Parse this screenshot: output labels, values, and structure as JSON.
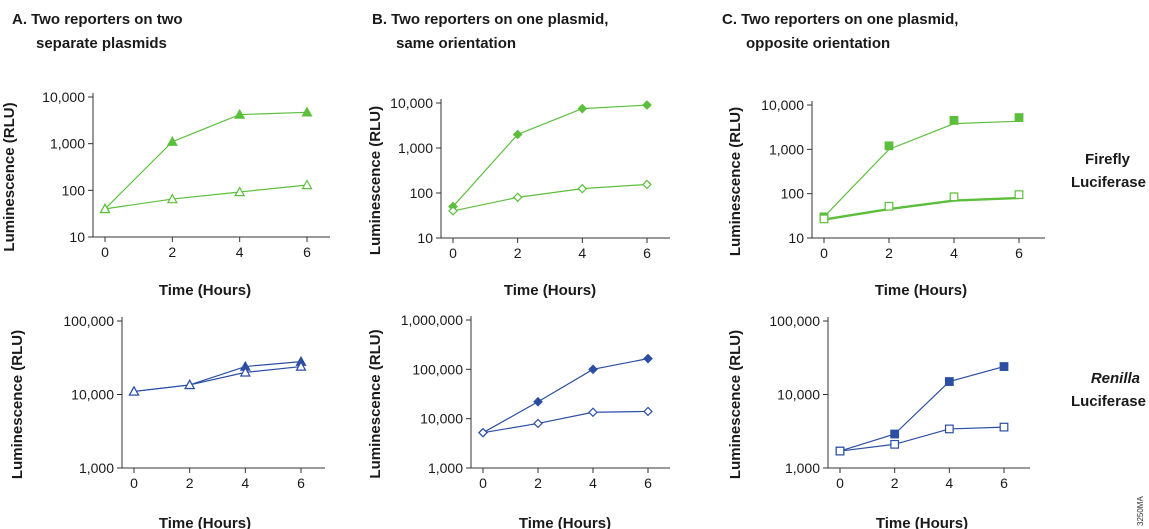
{
  "panels": {
    "a": {
      "title_line1": "A. Two reporters on two",
      "title_line2": "separate plasmids"
    },
    "b": {
      "title_line1": "B. Two reporters on one plasmid,",
      "title_line2": "same orientation"
    },
    "c": {
      "title_line1": "C. Two reporters on one plasmid,",
      "title_line2": "opposite orientation"
    }
  },
  "row_labels": {
    "firefly_line1": "Firefly",
    "firefly_line2": "Luciferase",
    "renilla_line1": "Renilla",
    "renilla_line2": "Luciferase"
  },
  "figure_code": "3250MA",
  "colors": {
    "firefly": "#5cbf3c",
    "renilla": "#2b4ea3"
  },
  "chart_data": [
    {
      "id": "a_firefly",
      "type": "line",
      "scale": "log",
      "xlabel": "Time (Hours)",
      "ylabel": "Luminescence (RLU)",
      "xticks": [
        0,
        2,
        4,
        6
      ],
      "yticks": [
        10,
        100,
        1000,
        10000
      ],
      "ytick_labels": [
        "10",
        "100",
        "1,000",
        "10,000"
      ],
      "ylim": [
        10,
        10000
      ],
      "marker": "triangle",
      "x": [
        0,
        2,
        4,
        6
      ],
      "series": [
        {
          "values": [
            40,
            1100,
            4200,
            4700
          ],
          "filled": true
        },
        {
          "values": [
            40,
            65,
            92,
            130
          ],
          "filled": false
        }
      ]
    },
    {
      "id": "b_firefly",
      "type": "line",
      "scale": "log",
      "xlabel": "Time (Hours)",
      "ylabel": "Luminescence (RLU)",
      "xticks": [
        0,
        2,
        4,
        6
      ],
      "yticks": [
        10,
        100,
        1000,
        10000
      ],
      "ytick_labels": [
        "10",
        "100",
        "1,000",
        "10,000"
      ],
      "ylim": [
        10,
        10000
      ],
      "marker": "diamond",
      "x": [
        0,
        2,
        4,
        6
      ],
      "series": [
        {
          "values": [
            50,
            2000,
            7500,
            9000
          ],
          "filled": true
        },
        {
          "values": [
            40,
            80,
            125,
            155
          ],
          "filled": false
        }
      ]
    },
    {
      "id": "c_firefly",
      "type": "line",
      "scale": "log",
      "xlabel": "Time (Hours)",
      "ylabel": "Luminescence (RLU)",
      "xticks": [
        0,
        2,
        4,
        6
      ],
      "yticks": [
        10,
        100,
        1000,
        10000
      ],
      "ytick_labels": [
        "10",
        "100",
        "1,000",
        "10,000"
      ],
      "ylim": [
        10,
        10000
      ],
      "marker": "square",
      "x": [
        0,
        2,
        4,
        6
      ],
      "series": [
        {
          "values": [
            30,
            1200,
            4500,
            5200
          ],
          "filled": true,
          "line_values": [
            30,
            1000,
            3800,
            4300
          ]
        },
        {
          "values": [
            27,
            52,
            85,
            95
          ],
          "filled": false,
          "line_values": [
            26,
            45,
            70,
            80
          ],
          "thick": true
        }
      ]
    },
    {
      "id": "a_renilla",
      "type": "line",
      "scale": "log",
      "xlabel": "Time (Hours)",
      "ylabel": "Luminescence (RLU)",
      "xticks": [
        0,
        2,
        4,
        6
      ],
      "yticks": [
        1000,
        10000,
        100000
      ],
      "ytick_labels": [
        "1,000",
        "10,000",
        "100,000"
      ],
      "ylim": [
        1000,
        100000
      ],
      "marker": "triangle",
      "x": [
        0,
        2,
        4,
        6
      ],
      "series": [
        {
          "values": [
            11000,
            13500,
            24000,
            28000
          ],
          "filled": true
        },
        {
          "values": [
            11000,
            13500,
            20000,
            24000
          ],
          "filled": false
        }
      ]
    },
    {
      "id": "b_renilla",
      "type": "line",
      "scale": "log",
      "xlabel": "Time (Hours)",
      "ylabel": "Luminescence (RLU)",
      "xticks": [
        0,
        2,
        4,
        6
      ],
      "yticks": [
        1000,
        10000,
        100000,
        1000000
      ],
      "ytick_labels": [
        "1,000",
        "10,000",
        "100,000",
        "1,000,000"
      ],
      "ylim": [
        1000,
        1000000
      ],
      "marker": "diamond",
      "x": [
        0,
        2,
        4,
        6
      ],
      "series": [
        {
          "values": [
            5200,
            22000,
            100000,
            165000
          ],
          "filled": true
        },
        {
          "values": [
            5200,
            8000,
            13500,
            14000
          ],
          "filled": false
        }
      ]
    },
    {
      "id": "c_renilla",
      "type": "line",
      "scale": "log",
      "xlabel": "Time (Hours)",
      "ylabel": "Luminescence (RLU)",
      "xticks": [
        0,
        2,
        4,
        6
      ],
      "yticks": [
        1000,
        10000,
        100000
      ],
      "ytick_labels": [
        "1,000",
        "10,000",
        "100,000"
      ],
      "ylim": [
        1000,
        100000
      ],
      "marker": "square",
      "x": [
        0,
        2,
        4,
        6
      ],
      "series": [
        {
          "values": [
            1700,
            2900,
            15000,
            24000
          ],
          "filled": true
        },
        {
          "values": [
            1700,
            2100,
            3400,
            3600
          ],
          "filled": false
        }
      ]
    }
  ]
}
